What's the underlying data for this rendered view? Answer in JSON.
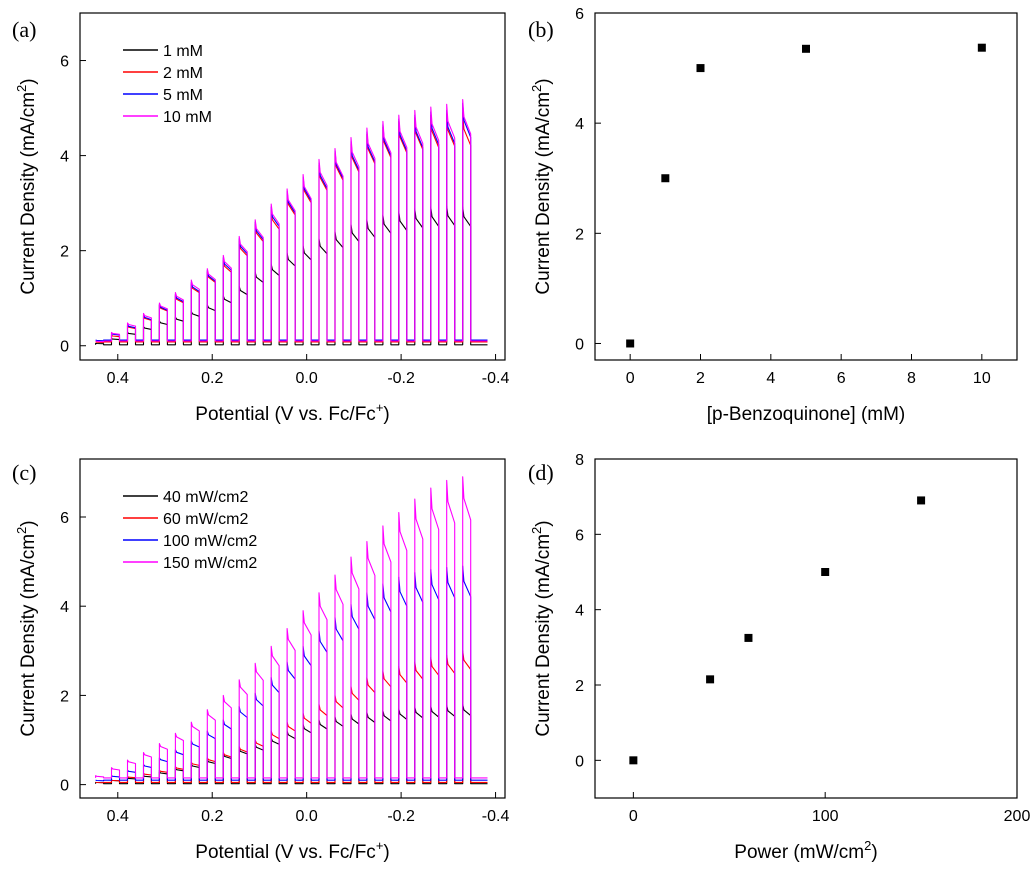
{
  "chart_data": [
    {
      "panel": "(a)",
      "type": "line",
      "xlabel": "Potential (V vs. Fc/Fc",
      "xlabel_sup": "+",
      "xlabel_end": ")",
      "ylabel": "Current Density (mA/cm",
      "ylabel_sup": "2",
      "ylabel_end": ")",
      "xlim": [
        0.48,
        -0.42
      ],
      "ylim": [
        -0.3,
        7.0
      ],
      "xticks": [
        0.4,
        0.2,
        0.0,
        -0.2,
        -0.4
      ],
      "xtick_labels": [
        "0.4",
        "0.2",
        "0.0",
        "-0.2",
        "-0.4"
      ],
      "yticks": [
        0,
        2,
        4,
        6
      ],
      "ytick_labels": [
        "0",
        "2",
        "4",
        "6"
      ],
      "legend_position": "top-left",
      "pulse_on_start": 0.447,
      "pulse_period": 0.0338,
      "pulse_count": 24,
      "x_end": -0.383,
      "series": [
        {
          "name": "1 mM",
          "color": "#000000",
          "base": 0.02,
          "on_values": [
            0.05,
            0.15,
            0.28,
            0.4,
            0.52,
            0.6,
            0.72,
            0.86,
            1.05,
            1.25,
            1.55,
            1.72,
            1.95,
            2.1,
            2.25,
            2.4,
            2.55,
            2.65,
            2.75,
            2.82,
            2.88,
            2.92,
            2.94,
            2.92
          ]
        },
        {
          "name": "2 mM",
          "color": "#ff0000",
          "base": 0.08,
          "on_values": [
            0.08,
            0.22,
            0.42,
            0.62,
            0.85,
            1.05,
            1.3,
            1.55,
            1.8,
            2.2,
            2.55,
            2.85,
            3.2,
            3.5,
            3.8,
            4.05,
            4.25,
            4.45,
            4.6,
            4.72,
            4.8,
            4.85,
            4.88,
            4.9
          ]
        },
        {
          "name": "5 mM",
          "color": "#0000ff",
          "base": 0.12,
          "on_values": [
            0.12,
            0.26,
            0.44,
            0.64,
            0.87,
            1.08,
            1.33,
            1.58,
            1.85,
            2.25,
            2.6,
            2.92,
            3.25,
            3.55,
            3.85,
            4.1,
            4.3,
            4.5,
            4.65,
            4.77,
            4.85,
            4.92,
            4.95,
            5.1
          ]
        },
        {
          "name": "10 mM",
          "color": "#ff00ff",
          "base": 0.1,
          "on_values": [
            0.1,
            0.28,
            0.48,
            0.68,
            0.9,
            1.12,
            1.38,
            1.62,
            1.9,
            2.3,
            2.65,
            2.98,
            3.3,
            3.6,
            3.92,
            4.15,
            4.38,
            4.58,
            4.72,
            4.85,
            4.95,
            5.02,
            5.08,
            5.18
          ]
        }
      ]
    },
    {
      "panel": "(b)",
      "type": "scatter",
      "xlabel": "[p-Benzoquinone] (mM)",
      "ylabel": "Current Density (mA/cm",
      "ylabel_sup": "2",
      "ylabel_end": ")",
      "xlim": [
        -1,
        11
      ],
      "ylim": [
        -0.3,
        6
      ],
      "xticks": [
        0,
        2,
        4,
        6,
        8,
        10
      ],
      "xtick_labels": [
        "0",
        "2",
        "4",
        "6",
        "8",
        "10"
      ],
      "yticks": [
        0,
        2,
        4,
        6
      ],
      "ytick_labels": [
        "0",
        "2",
        "4",
        "6"
      ],
      "points": [
        {
          "x": 0,
          "y": 0
        },
        {
          "x": 1,
          "y": 3.0
        },
        {
          "x": 2,
          "y": 5.0
        },
        {
          "x": 5,
          "y": 5.35
        },
        {
          "x": 10,
          "y": 5.37
        }
      ]
    },
    {
      "panel": "(c)",
      "type": "line",
      "xlabel": "Potential (V vs. Fc/Fc",
      "xlabel_sup": "+",
      "xlabel_end": ")",
      "ylabel": "Current Density (mA/cm",
      "ylabel_sup": "2",
      "ylabel_end": ")",
      "xlim": [
        0.48,
        -0.42
      ],
      "ylim": [
        -0.3,
        7.3
      ],
      "xticks": [
        0.4,
        0.2,
        0.0,
        -0.2,
        -0.4
      ],
      "xtick_labels": [
        "0.4",
        "0.2",
        "0.0",
        "-0.2",
        "-0.4"
      ],
      "yticks": [
        0,
        2,
        4,
        6
      ],
      "ytick_labels": [
        "0",
        "2",
        "4",
        "6"
      ],
      "legend_position": "top-left",
      "pulse_on_start": 0.447,
      "pulse_period": 0.0338,
      "pulse_count": 24,
      "x_end": -0.383,
      "series": [
        {
          "name": "40 mW/cm2",
          "color": "#000000",
          "base": 0.02,
          "on_values": [
            0.05,
            0.1,
            0.15,
            0.2,
            0.28,
            0.36,
            0.45,
            0.55,
            0.68,
            0.8,
            0.9,
            1.05,
            1.2,
            1.35,
            1.45,
            1.52,
            1.58,
            1.62,
            1.66,
            1.7,
            1.74,
            1.76,
            1.78,
            1.8
          ]
        },
        {
          "name": "60 mW/cm2",
          "color": "#ff0000",
          "base": 0.05,
          "on_values": [
            0.05,
            0.1,
            0.18,
            0.25,
            0.32,
            0.4,
            0.5,
            0.6,
            0.72,
            0.85,
            1.0,
            1.2,
            1.4,
            1.6,
            1.8,
            2.0,
            2.2,
            2.4,
            2.55,
            2.65,
            2.75,
            2.85,
            2.9,
            3.0
          ]
        },
        {
          "name": "100 mW/cm2",
          "color": "#0000ff",
          "base": 0.1,
          "on_values": [
            0.1,
            0.2,
            0.32,
            0.45,
            0.6,
            0.78,
            0.98,
            1.2,
            1.45,
            1.75,
            2.05,
            2.4,
            2.75,
            3.1,
            3.45,
            3.75,
            4.05,
            4.3,
            4.5,
            4.65,
            4.75,
            4.82,
            4.87,
            4.9
          ]
        },
        {
          "name": "150 mW/cm2",
          "color": "#ff00ff",
          "base": 0.15,
          "on_values": [
            0.2,
            0.38,
            0.55,
            0.72,
            0.92,
            1.15,
            1.4,
            1.68,
            2.0,
            2.35,
            2.72,
            3.1,
            3.5,
            3.9,
            4.3,
            4.7,
            5.1,
            5.45,
            5.8,
            6.1,
            6.4,
            6.65,
            6.82,
            6.9
          ]
        }
      ]
    },
    {
      "panel": "(d)",
      "type": "scatter",
      "xlabel": "Power (mW/cm",
      "xlabel_sup": "2",
      "xlabel_end": ")",
      "ylabel": "Current Density (mA/cm",
      "ylabel_sup": "2",
      "ylabel_end": ")",
      "xlim": [
        -20,
        200
      ],
      "ylim": [
        -1,
        8
      ],
      "xticks": [
        0,
        100,
        200
      ],
      "xtick_labels": [
        "0",
        "100",
        "200"
      ],
      "yticks": [
        0,
        2,
        4,
        6,
        8
      ],
      "ytick_labels": [
        "0",
        "2",
        "4",
        "6",
        "8"
      ],
      "points": [
        {
          "x": 0,
          "y": 0
        },
        {
          "x": 40,
          "y": 2.15
        },
        {
          "x": 60,
          "y": 3.25
        },
        {
          "x": 100,
          "y": 5.0
        },
        {
          "x": 150,
          "y": 6.9
        }
      ]
    }
  ]
}
